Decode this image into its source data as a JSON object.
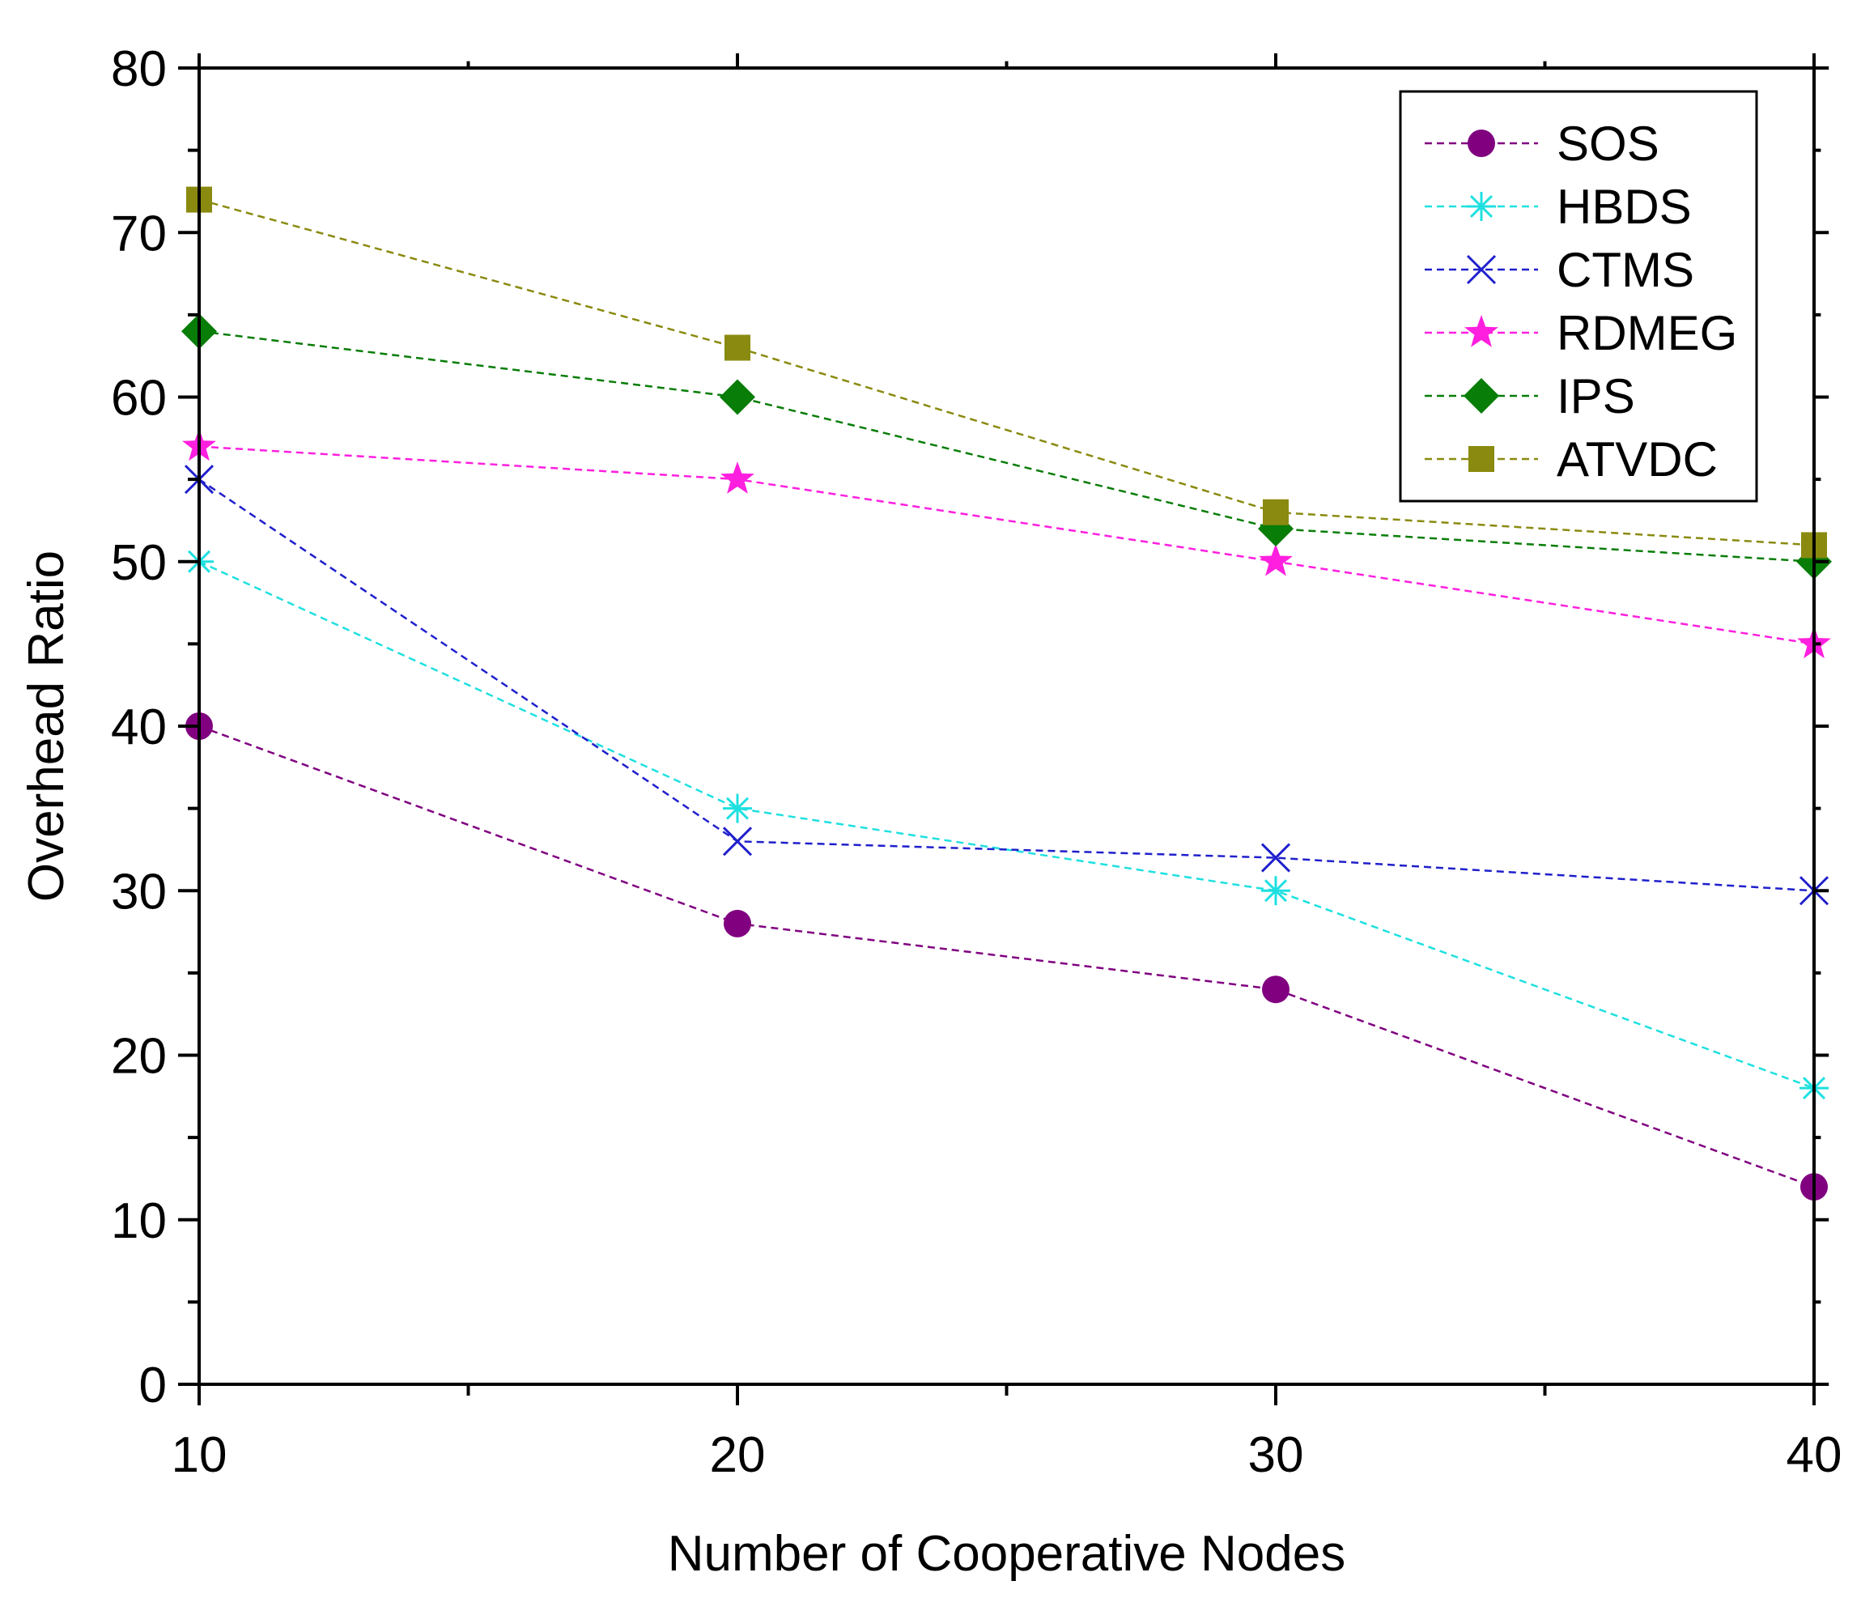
{
  "chart_data": {
    "type": "line",
    "title": "",
    "xlabel": "Number of Cooperative Nodes",
    "ylabel": "Overhead Ratio",
    "x": [
      10,
      20,
      30,
      40
    ],
    "xlim": [
      10,
      40
    ],
    "ylim": [
      0,
      80
    ],
    "xticks": [
      10,
      20,
      30,
      40
    ],
    "yticks": [
      0,
      10,
      20,
      30,
      40,
      50,
      60,
      70,
      80
    ],
    "grid": false,
    "legend_position": "top-right",
    "line_style": "dashed",
    "series": [
      {
        "name": "SOS",
        "values": [
          40,
          28,
          24,
          12
        ],
        "color": "#800080",
        "marker": "circle"
      },
      {
        "name": "HBDS",
        "values": [
          50,
          35,
          30,
          18
        ],
        "color": "#1fe0e0",
        "marker": "asterisk"
      },
      {
        "name": "CTMS",
        "values": [
          55,
          33,
          32,
          30
        ],
        "color": "#1f1fcc",
        "marker": "cross"
      },
      {
        "name": "RDMEG",
        "values": [
          57,
          55,
          50,
          45
        ],
        "color": "#ff1fdf",
        "marker": "star"
      },
      {
        "name": "IPS",
        "values": [
          64,
          60,
          52,
          50
        ],
        "color": "#087d08",
        "marker": "diamond"
      },
      {
        "name": "ATVDC",
        "values": [
          72,
          63,
          53,
          51
        ],
        "color": "#8a8a10",
        "marker": "square"
      }
    ]
  }
}
